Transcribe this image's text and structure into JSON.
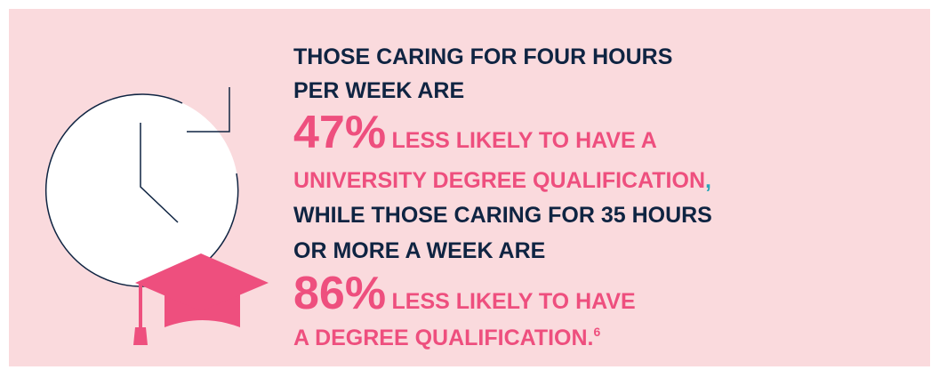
{
  "statement": {
    "line1": "THOSE CARING FOR FOUR HOURS",
    "line2": "PER WEEK ARE",
    "stat1": "47%",
    "line3": "LESS LIKELY TO HAVE A",
    "line4": "UNIVERSITY DEGREE QUALIFICATION",
    "comma": ",",
    "line5": "WHILE THOSE CARING FOR 35 HOURS",
    "line6": "OR MORE A WEEK ARE",
    "stat2": "86%",
    "line7": "LESS LIKELY TO HAVE",
    "line8": "A DEGREE QUALIFICATION.",
    "footnote": "6"
  }
}
